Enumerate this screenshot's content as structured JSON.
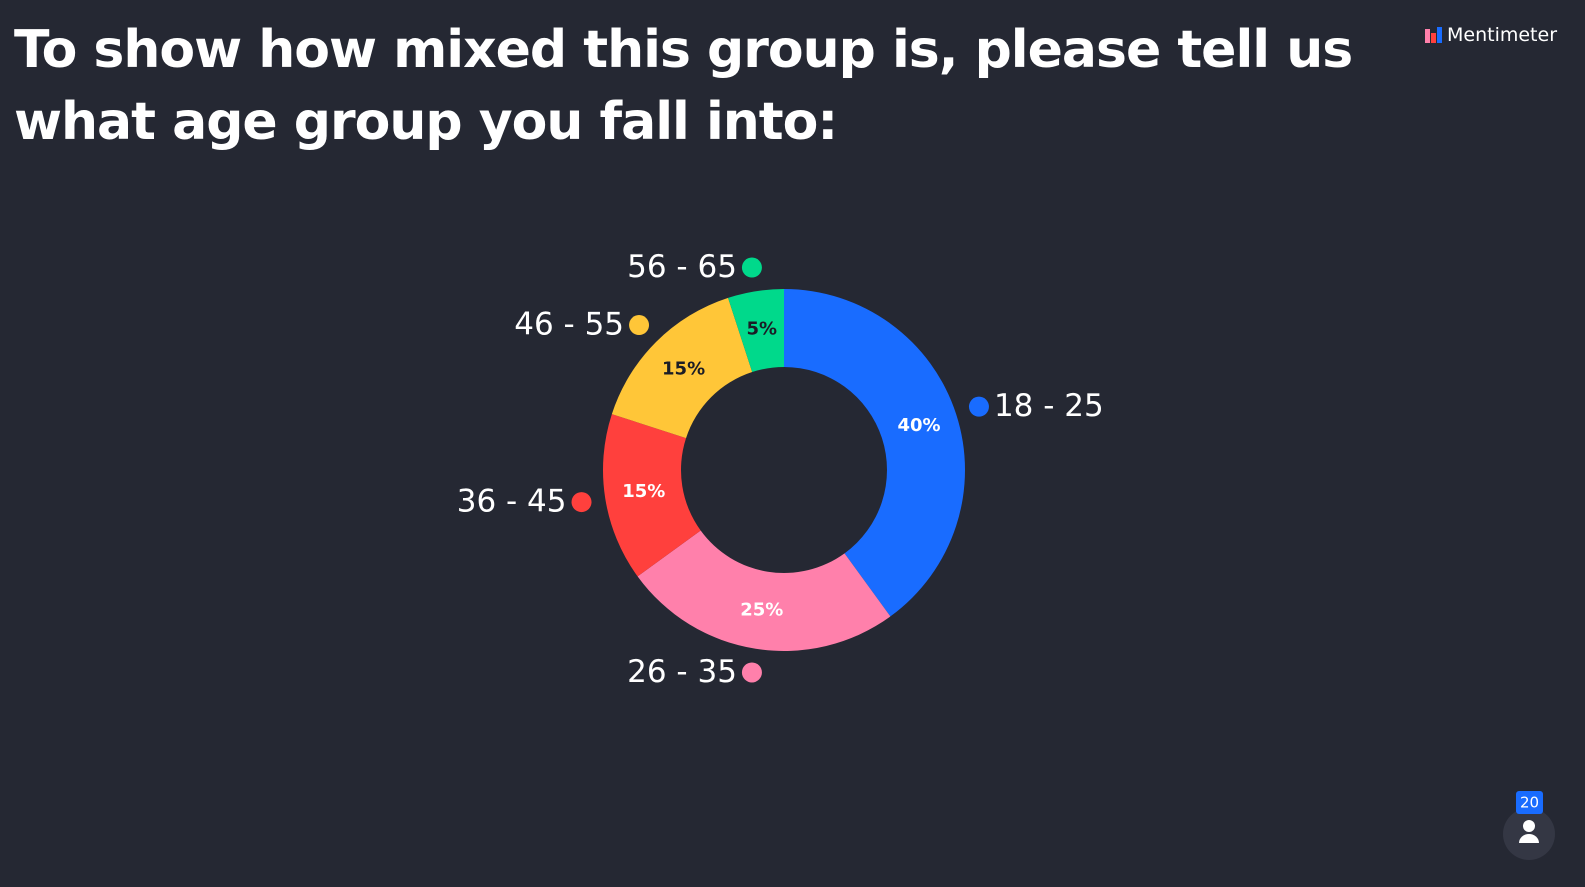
{
  "brand": "Mentimeter",
  "participants": 20,
  "chart_data": {
    "type": "donut",
    "title": "To show how mixed this group is, please tell us what age group you fall into:",
    "categories": [
      "18 - 25",
      "26 - 35",
      "36 - 45",
      "46 - 55",
      "56 - 65"
    ],
    "values": [
      40,
      25,
      15,
      15,
      5
    ],
    "value_labels": [
      "40%",
      "25%",
      "15%",
      "15%",
      "5%"
    ],
    "colors": [
      "#196cff",
      "#ff80ab",
      "#ff403d",
      "#ffc638",
      "#00d98b"
    ],
    "label_colors": [
      "#ffffff",
      "#ffffff",
      "#ffffff",
      "#1b1d26",
      "#1b1d26"
    ]
  }
}
